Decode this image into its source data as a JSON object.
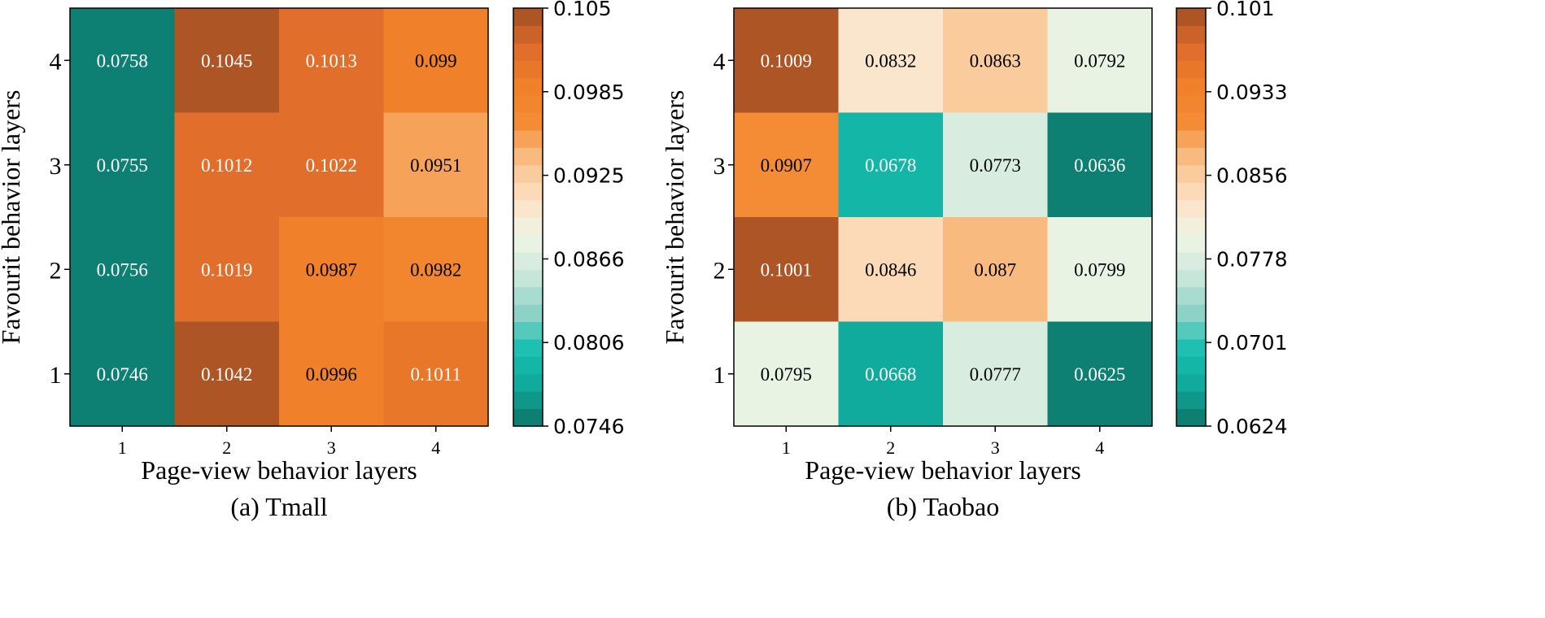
{
  "chart_data": [
    {
      "type": "heatmap",
      "caption": "(a) Tmall",
      "xlabel": "Page-view behavior layers",
      "ylabel": "Favourit behavior layers",
      "x_categories": [
        "1",
        "2",
        "3",
        "4"
      ],
      "y_categories": [
        "1",
        "2",
        "3",
        "4"
      ],
      "values_rows_top_to_bottom": [
        [
          "0.0758",
          "0.1045",
          "0.1013",
          "0.099"
        ],
        [
          "0.0755",
          "0.1012",
          "0.1022",
          "0.0951"
        ],
        [
          "0.0756",
          "0.1019",
          "0.0987",
          "0.0982"
        ],
        [
          "0.0746",
          "0.1042",
          "0.0996",
          "0.1011"
        ]
      ],
      "colorbar": {
        "min": 0.0746,
        "max": 0.105,
        "ticks": [
          "0.105",
          "0.0985",
          "0.0925",
          "0.0866",
          "0.0806",
          "0.0746"
        ]
      }
    },
    {
      "type": "heatmap",
      "caption": "(b) Taobao",
      "xlabel": "Page-view behavior layers",
      "ylabel": "Favourit behavior layers",
      "x_categories": [
        "1",
        "2",
        "3",
        "4"
      ],
      "y_categories": [
        "1",
        "2",
        "3",
        "4"
      ],
      "values_rows_top_to_bottom": [
        [
          "0.1009",
          "0.0832",
          "0.0863",
          "0.0792"
        ],
        [
          "0.0907",
          "0.0678",
          "0.0773",
          "0.0636"
        ],
        [
          "0.1001",
          "0.0846",
          "0.087",
          "0.0799"
        ],
        [
          "0.0795",
          "0.0668",
          "0.0777",
          "0.0625"
        ]
      ],
      "colorbar": {
        "min": 0.0624,
        "max": 0.101,
        "ticks": [
          "0.101",
          "0.0933",
          "0.0856",
          "0.0778",
          "0.0701",
          "0.0624"
        ]
      }
    }
  ],
  "colormap": {
    "steps": 24,
    "low_to_high": [
      "#0e7568",
      "#10a79a",
      "#17bfb0",
      "#8ed2c6",
      "#cce8dc",
      "#eff5e6",
      "#fde0c4",
      "#f9bf86",
      "#f48c36",
      "#f07f28",
      "#de6b2a",
      "#a04e24"
    ]
  }
}
